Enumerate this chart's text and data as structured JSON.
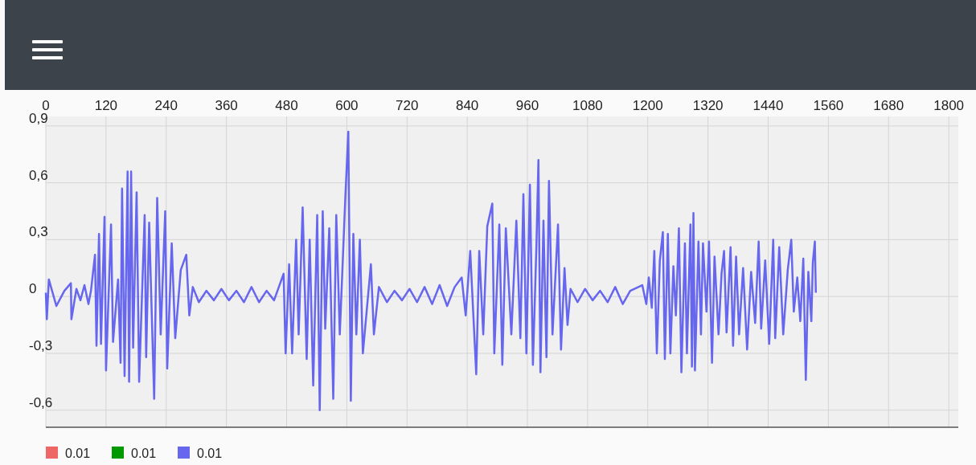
{
  "chart_data": {
    "type": "line",
    "xlim": [
      0,
      1819
    ],
    "ylim": [
      -0.69,
      0.95
    ],
    "xticks": [
      0,
      120,
      240,
      360,
      480,
      600,
      720,
      840,
      960,
      1080,
      1200,
      1320,
      1440,
      1560,
      1680,
      1800
    ],
    "yticks": [
      {
        "value": 0.9,
        "label": "0,9"
      },
      {
        "value": 0.6,
        "label": "0,6"
      },
      {
        "value": 0.3,
        "label": "0,3"
      },
      0,
      {
        "value": -0.3,
        "label": "-0,3"
      },
      {
        "value": -0.6,
        "label": "-0,6"
      }
    ],
    "grid": true,
    "legend": "bottom left",
    "marker": "none",
    "line_style": "solid",
    "series": [
      {
        "name": "0.01",
        "color": "#ee6666"
      },
      {
        "name": "0.01",
        "color": "#009900"
      },
      {
        "name": "0.01",
        "color": "#6666ee",
        "x": [
          0,
          2,
          6,
          21,
          37,
          50,
          51,
          61,
          69,
          77,
          85,
          90,
          98,
          101,
          106,
          110,
          117,
          120,
          130,
          134,
          144,
          149,
          152,
          157,
          163,
          166,
          170,
          174,
          181,
          186,
          197,
          200,
          206,
          216,
          222,
          229,
          238,
          242,
          251,
          258,
          269,
          280,
          286,
          293,
          305,
          320,
          335,
          350,
          365,
          380,
          395,
          410,
          425,
          440,
          455,
          474,
          478,
          485,
          491,
          499,
          504,
          512,
          520,
          526,
          533,
          541,
          546,
          552,
          557,
          565,
          573,
          579,
          586,
          597,
          603,
          608,
          613,
          619,
          626,
          632,
          648,
          654,
          664,
          680,
          695,
          710,
          725,
          740,
          755,
          770,
          785,
          800,
          815,
          829,
          837,
          846,
          858,
          864,
          872,
          880,
          890,
          894,
          904,
          910,
          917,
          928,
          938,
          946,
          952,
          958,
          965,
          971,
          978,
          982,
          986,
          992,
          998,
          1003,
          1010,
          1021,
          1027,
          1034,
          1040,
          1046,
          1060,
          1075,
          1090,
          1105,
          1120,
          1135,
          1150,
          1165,
          1189,
          1197,
          1202,
          1208,
          1213,
          1218,
          1224,
          1230,
          1234,
          1240,
          1245,
          1251,
          1256,
          1262,
          1267,
          1274,
          1278,
          1285,
          1288,
          1291,
          1294,
          1301,
          1306,
          1310,
          1317,
          1322,
          1328,
          1333,
          1341,
          1347,
          1352,
          1357,
          1365,
          1370,
          1376,
          1382,
          1390,
          1398,
          1406,
          1414,
          1421,
          1426,
          1434,
          1442,
          1450,
          1454,
          1462,
          1470,
          1479,
          1486,
          1491,
          1498,
          1504,
          1510,
          1515,
          1520,
          1526,
          1529,
          1533,
          1535
        ],
        "values": [
          0.02,
          -0.12,
          0.09,
          -0.05,
          0.03,
          0.07,
          -0.12,
          0.04,
          -0.02,
          0.06,
          -0.04,
          0.03,
          0.22,
          -0.26,
          0.33,
          -0.25,
          0.42,
          -0.39,
          0.38,
          -0.24,
          0.09,
          -0.35,
          0.57,
          -0.42,
          0.66,
          -0.45,
          0.66,
          -0.27,
          0.55,
          -0.45,
          0.43,
          -0.32,
          0.39,
          -0.54,
          0.52,
          -0.2,
          0.45,
          -0.38,
          0.28,
          -0.22,
          0.14,
          0.22,
          -0.1,
          0.05,
          -0.03,
          0.03,
          -0.02,
          0.04,
          -0.02,
          0.03,
          -0.03,
          0.05,
          -0.03,
          0.03,
          -0.02,
          0.12,
          -0.3,
          0.17,
          -0.3,
          0.3,
          -0.2,
          0.47,
          -0.33,
          0.3,
          -0.47,
          0.43,
          -0.6,
          0.45,
          -0.17,
          0.36,
          -0.54,
          0.43,
          -0.2,
          0.52,
          0.87,
          -0.55,
          0.33,
          -0.2,
          0.3,
          -0.3,
          0.17,
          -0.2,
          0.05,
          -0.03,
          0.03,
          -0.02,
          0.04,
          -0.03,
          0.05,
          -0.04,
          0.06,
          -0.05,
          0.05,
          0.1,
          -0.1,
          0.24,
          -0.41,
          0.24,
          -0.2,
          0.37,
          0.49,
          -0.3,
          0.38,
          -0.36,
          0.36,
          -0.2,
          0.4,
          -0.22,
          0.54,
          -0.3,
          0.59,
          -0.36,
          0.27,
          0.72,
          -0.4,
          0.4,
          -0.32,
          0.61,
          -0.2,
          0.38,
          -0.28,
          0.15,
          -0.15,
          0.04,
          -0.03,
          0.04,
          -0.02,
          0.03,
          -0.03,
          0.05,
          -0.04,
          0.03,
          0.06,
          -0.04,
          0.1,
          -0.06,
          0.24,
          -0.3,
          0.19,
          0.34,
          -0.33,
          0.33,
          -0.3,
          0.16,
          -0.1,
          0.36,
          -0.4,
          0.28,
          -0.3,
          0.38,
          -0.37,
          0.44,
          -0.39,
          0.29,
          -0.2,
          0.28,
          -0.08,
          0.29,
          -0.35,
          0.21,
          -0.2,
          0.12,
          0.24,
          -0.19,
          0.26,
          -0.26,
          0.21,
          -0.2,
          0.15,
          -0.28,
          0.13,
          -0.14,
          0.29,
          -0.17,
          0.19,
          -0.25,
          0.3,
          -0.22,
          0.26,
          -0.2,
          0.14,
          0.3,
          -0.08,
          0.1,
          -0.13,
          0.2,
          -0.44,
          0.13,
          -0.13,
          0.18,
          0.29,
          0.02
        ]
      }
    ]
  }
}
